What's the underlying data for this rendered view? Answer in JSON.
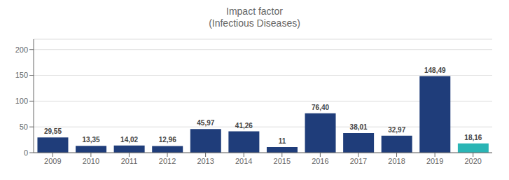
{
  "chart_data": {
    "type": "bar",
    "title": "Impact factor",
    "subtitle": "(Infectious Diseases)",
    "categories": [
      "2009",
      "2010",
      "2011",
      "2012",
      "2013",
      "2014",
      "2015",
      "2016",
      "2017",
      "2018",
      "2019",
      "2020"
    ],
    "values": [
      29.55,
      13.35,
      14.02,
      12.96,
      45.97,
      41.26,
      11,
      76.4,
      38.01,
      32.97,
      148.49,
      18.16
    ],
    "value_labels": [
      "29,55",
      "13,35",
      "14,02",
      "12,96",
      "45,97",
      "41,26",
      "11",
      "76,40",
      "38,01",
      "32,97",
      "148,49",
      "18,16"
    ],
    "colors": [
      "#1f3d7a",
      "#1f3d7a",
      "#1f3d7a",
      "#1f3d7a",
      "#1f3d7a",
      "#1f3d7a",
      "#1f3d7a",
      "#1f3d7a",
      "#1f3d7a",
      "#1f3d7a",
      "#1f3d7a",
      "#2ab5b5"
    ],
    "ylim": [
      0,
      220
    ],
    "yticks": [
      0,
      50,
      100,
      150,
      200
    ],
    "grid": true,
    "data_labels": true
  }
}
